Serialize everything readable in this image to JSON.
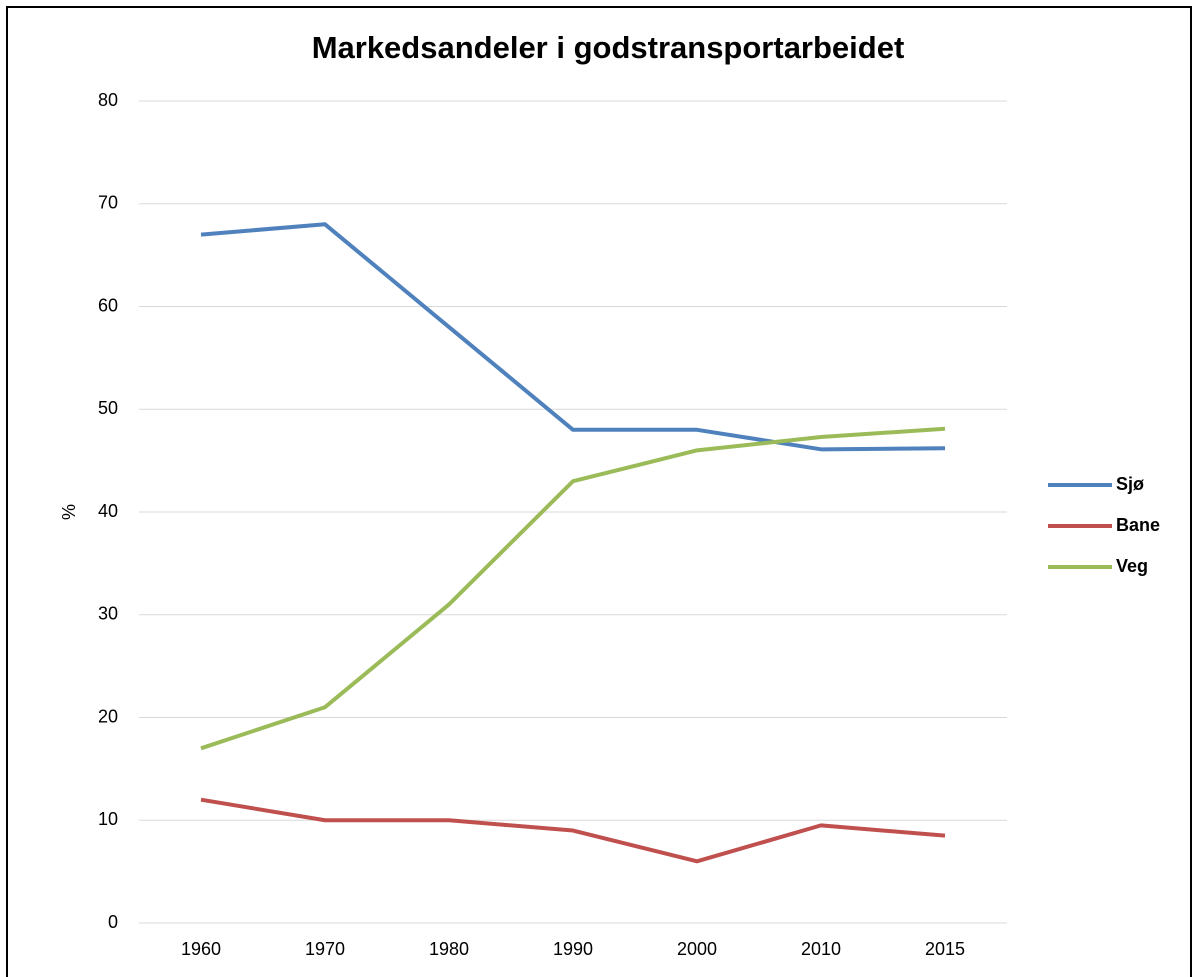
{
  "chart_data": {
    "type": "line",
    "title": "Markedsandeler i godstransportarbeidet",
    "y_label": "%",
    "categories": [
      "1960",
      "1970",
      "1980",
      "1990",
      "2000",
      "2010",
      "2015"
    ],
    "series": [
      {
        "name": "Sjø",
        "color": "#4f81bd",
        "values": [
          67,
          68,
          58,
          48,
          48,
          46.1,
          46.2
        ]
      },
      {
        "name": "Bane",
        "color": "#c0504d",
        "values": [
          12,
          10,
          10,
          9,
          6,
          9.5,
          8.5
        ]
      },
      {
        "name": "Veg",
        "color": "#9bbb59",
        "values": [
          17,
          21,
          31,
          43,
          46,
          47.3,
          48.1
        ]
      }
    ],
    "ylim": [
      0,
      80
    ],
    "yticks": [
      0,
      10,
      20,
      30,
      40,
      50,
      60,
      70,
      80
    ],
    "grid": true,
    "legend": "right"
  }
}
